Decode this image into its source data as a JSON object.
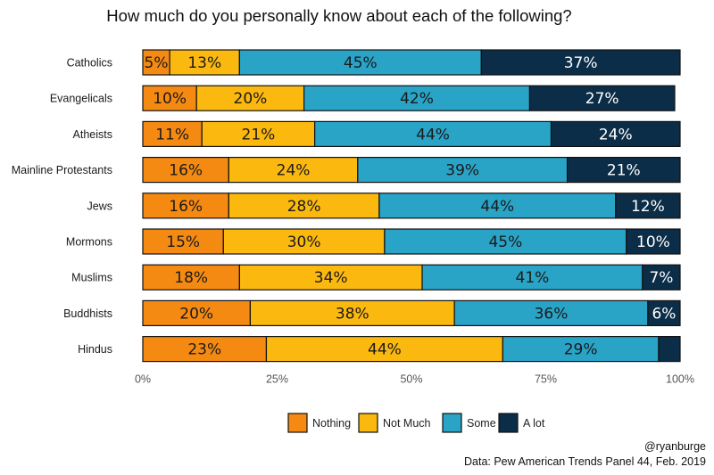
{
  "chart_data": {
    "type": "bar",
    "orientation": "horizontal",
    "stacked": true,
    "title": "How much do you personally know about each of the following?",
    "categories": [
      "Catholics",
      "Evangelicals",
      "Atheists",
      "Mainline Protestants",
      "Jews",
      "Mormons",
      "Muslims",
      "Buddhists",
      "Hindus"
    ],
    "series": [
      {
        "name": "Nothing",
        "color": "#f58a12",
        "label_color": "#1a1a1a",
        "values": [
          5,
          10,
          11,
          16,
          16,
          15,
          18,
          20,
          23
        ]
      },
      {
        "name": "Not Much",
        "color": "#fbb80f",
        "label_color": "#1a1a1a",
        "values": [
          13,
          20,
          21,
          24,
          28,
          30,
          34,
          38,
          44
        ]
      },
      {
        "name": "Some",
        "color": "#29a3c6",
        "label_color": "#1a1a1a",
        "values": [
          45,
          42,
          44,
          39,
          44,
          45,
          41,
          36,
          29
        ]
      },
      {
        "name": "A lot",
        "color": "#0b2d48",
        "label_color": "#ffffff",
        "values": [
          37,
          27,
          24,
          21,
          12,
          10,
          7,
          6,
          4
        ]
      }
    ],
    "labels": [
      [
        "5%",
        "13%",
        "45%",
        "37%"
      ],
      [
        "10%",
        "20%",
        "42%",
        "27%"
      ],
      [
        "11%",
        "21%",
        "44%",
        "24%"
      ],
      [
        "16%",
        "24%",
        "39%",
        "21%"
      ],
      [
        "16%",
        "28%",
        "44%",
        "12%"
      ],
      [
        "15%",
        "30%",
        "45%",
        "10%"
      ],
      [
        "18%",
        "34%",
        "41%",
        "7%"
      ],
      [
        "20%",
        "38%",
        "36%",
        "6%"
      ],
      [
        "23%",
        "44%",
        "29%",
        ""
      ]
    ],
    "xlim": [
      0,
      100
    ],
    "xticks": [
      0,
      25,
      50,
      75,
      100
    ],
    "xtick_labels": [
      "0%",
      "25%",
      "50%",
      "75%",
      "100%"
    ],
    "legend_position": "bottom",
    "grid": false
  },
  "caption": {
    "handle": "@ryanburge",
    "source": "Data: Pew American Trends Panel 44, Feb. 2019"
  }
}
